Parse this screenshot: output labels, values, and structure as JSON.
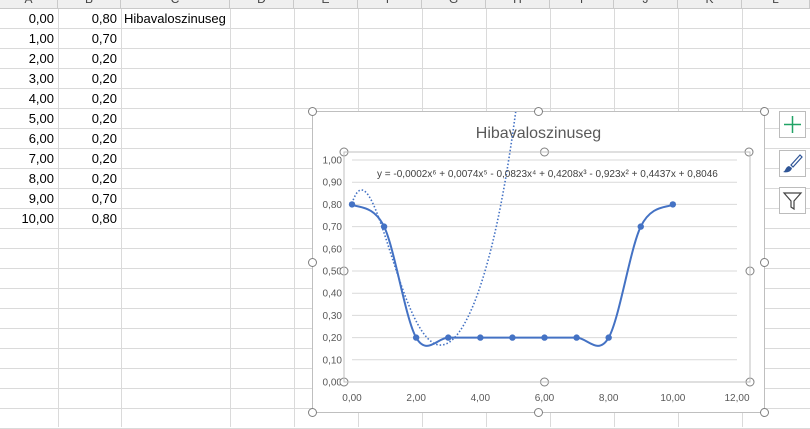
{
  "columns": [
    "A",
    "B",
    "C",
    "D",
    "E",
    "F",
    "G",
    "H",
    "I",
    "J",
    "K",
    "L"
  ],
  "rows": [
    {
      "a": "0,00",
      "b": "0,80",
      "c": "Hibavaloszinuseg"
    },
    {
      "a": "1,00",
      "b": "0,70",
      "c": ""
    },
    {
      "a": "2,00",
      "b": "0,20",
      "c": ""
    },
    {
      "a": "3,00",
      "b": "0,20",
      "c": ""
    },
    {
      "a": "4,00",
      "b": "0,20",
      "c": ""
    },
    {
      "a": "5,00",
      "b": "0,20",
      "c": ""
    },
    {
      "a": "6,00",
      "b": "0,20",
      "c": ""
    },
    {
      "a": "7,00",
      "b": "0,20",
      "c": ""
    },
    {
      "a": "8,00",
      "b": "0,20",
      "c": ""
    },
    {
      "a": "9,00",
      "b": "0,70",
      "c": ""
    },
    {
      "a": "10,00",
      "b": "0,80",
      "c": ""
    }
  ],
  "chart_data": {
    "type": "scatter",
    "title": "Hibavaloszinuseg",
    "trendline_label": "y = -0,0002x⁶ + 0,0074x⁵ - 0,0823x⁴ + 0,4208x³ - 0,923x² + 0,4437x + 0,8046",
    "trendline_coefficients": [
      -0.0002,
      0.0074,
      -0.0823,
      0.4208,
      -0.923,
      0.4437,
      0.8046
    ],
    "x": [
      0,
      1,
      2,
      3,
      4,
      5,
      6,
      7,
      8,
      9,
      10
    ],
    "y": [
      0.8,
      0.7,
      0.2,
      0.2,
      0.2,
      0.2,
      0.2,
      0.2,
      0.2,
      0.7,
      0.8
    ],
    "xlim": [
      0,
      12
    ],
    "ylim": [
      0,
      1
    ],
    "x_ticks": [
      "0,00",
      "2,00",
      "4,00",
      "6,00",
      "8,00",
      "10,00",
      "12,00"
    ],
    "y_ticks": [
      "0,00",
      "0,10",
      "0,20",
      "0,30",
      "0,40",
      "0,50",
      "0,60",
      "0,70",
      "0,80",
      "0,90",
      "1,00"
    ],
    "series_color": "#4472c4",
    "grid": "horizontal",
    "legend": "none"
  },
  "side_buttons": [
    "plus-icon",
    "brush-icon",
    "filter-icon"
  ]
}
